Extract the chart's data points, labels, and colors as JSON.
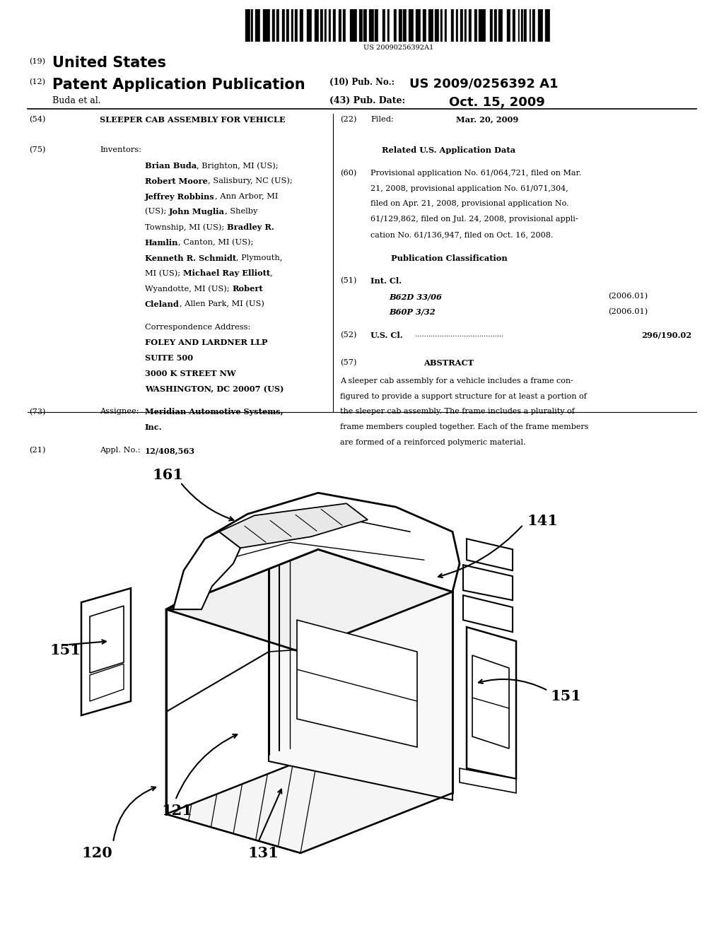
{
  "bg_color": "#ffffff",
  "barcode_text": "US 20090256392A1",
  "figsize": [
    10.24,
    13.2
  ],
  "dpi": 100,
  "header": {
    "tag19": "(19)",
    "us": "United States",
    "tag12": "(12)",
    "pap": "Patent Application Publication",
    "buda": "Buda et al.",
    "pub_no_tag": "(10) Pub. No.:",
    "pub_no": "US 2009/0256392 A1",
    "pub_date_tag": "(43) Pub. Date:",
    "pub_date": "Oct. 15, 2009"
  },
  "body": {
    "f54_tag": "(54)",
    "f54_val": "SLEEPER CAB ASSEMBLY FOR VEHICLE",
    "f22_tag": "(22)",
    "f22_filed": "Filed:",
    "f22_val": "Mar. 20, 2009",
    "f75_tag": "(75)",
    "f75_hdr": "Inventors:",
    "inv_lines": [
      [
        [
          "Brian Buda",
          true
        ],
        [
          ", Brighton, MI (US);",
          false
        ]
      ],
      [
        [
          "Robert Moore",
          true
        ],
        [
          ", Salisbury, NC (US);",
          false
        ]
      ],
      [
        [
          "Jeffrey Robbins",
          true
        ],
        [
          ", Ann Arbor, MI",
          false
        ]
      ],
      [
        [
          "(US); ",
          false
        ],
        [
          "John Muglia",
          true
        ],
        [
          ", Shelby",
          false
        ]
      ],
      [
        [
          "Township, MI (US); ",
          false
        ],
        [
          "Bradley R.",
          true
        ]
      ],
      [
        [
          "Hamlin",
          true
        ],
        [
          ", Canton, MI (US);",
          false
        ]
      ],
      [
        [
          "Kenneth R. Schmidt",
          true
        ],
        [
          ", Plymouth,",
          false
        ]
      ],
      [
        [
          "MI (US); ",
          false
        ],
        [
          "Michael Ray Elliott",
          true
        ],
        [
          ",",
          false
        ]
      ],
      [
        [
          "Wyandotte, MI (US); ",
          false
        ],
        [
          "Robert",
          true
        ]
      ],
      [
        [
          "Cleland",
          true
        ],
        [
          ", Allen Park, MI (US)",
          false
        ]
      ]
    ],
    "corr_hdr": "Correspondence Address:",
    "corr_lines": [
      "FOLEY AND LARDNER LLP",
      "SUITE 500",
      "3000 K STREET NW",
      "WASHINGTON, DC 20007 (US)"
    ],
    "f73_tag": "(73)",
    "f73_hdr": "Assignee:",
    "f73_val": [
      "Meridian Automotive Systems,",
      "Inc."
    ],
    "f21_tag": "(21)",
    "f21_hdr": "Appl. No.:",
    "f21_val": "12/408,563",
    "related_hdr": "Related U.S. Application Data",
    "f60_tag": "(60)",
    "f60_lines": [
      "Provisional application No. 61/064,721, filed on Mar.",
      "21, 2008, provisional application No. 61/071,304,",
      "filed on Apr. 21, 2008, provisional application No.",
      "61/129,862, filed on Jul. 24, 2008, provisional appli-",
      "cation No. 61/136,947, filed on Oct. 16, 2008."
    ],
    "pub_class_hdr": "Publication Classification",
    "f51_tag": "(51)",
    "f51_hdr": "Int. Cl.",
    "f51_v1": "B62D 33/06",
    "f51_d1": "(2006.01)",
    "f51_v2": "B60P 3/32",
    "f51_d2": "(2006.01)",
    "f52_tag": "(52)",
    "f52_hdr": "U.S. Cl.",
    "f52_val": "296/190.02",
    "f57_tag": "(57)",
    "f57_hdr": "ABSTRACT",
    "f57_lines": [
      "A sleeper cab assembly for a vehicle includes a frame con-",
      "figured to provide a support structure for at least a portion of",
      "the sleeper cab assembly. The frame includes a plurality of",
      "frame members coupled together. Each of the frame members",
      "are formed of a reinforced polymeric material."
    ]
  }
}
